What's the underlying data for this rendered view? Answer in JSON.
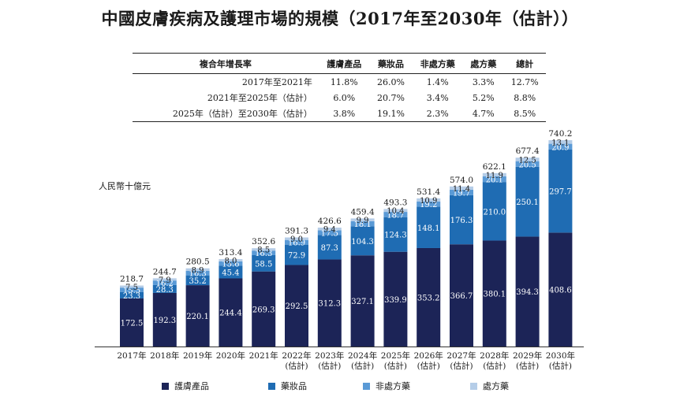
{
  "title": "中國皮膚疾病及護理市場的規模（2017年至2030年（估計））",
  "unit_label": "人民幣十億元",
  "cagr_table": {
    "headers": [
      "複合年增長率",
      "護膚產品",
      "藥妝品",
      "非處方藥",
      "處方藥",
      "總計"
    ],
    "rows": [
      [
        "2017年至2021年",
        "11.8%",
        "26.0%",
        "1.4%",
        "3.3%",
        "12.7%"
      ],
      [
        "2021年至2025年（估計）",
        "6.0%",
        "20.7%",
        "3.4%",
        "5.2%",
        "8.8%"
      ],
      [
        "2025年（估計）至2030年（估計）",
        "3.8%",
        "19.1%",
        "2.3%",
        "4.7%",
        "8.5%"
      ]
    ]
  },
  "colors": {
    "skincare": "#1c2457",
    "cosmeceutical": "#1f6cb3",
    "otc": "#5a9ad6",
    "rx": "#b5cde8"
  },
  "chart_data": {
    "type": "bar",
    "stacked": true,
    "categories": [
      "2017年",
      "2018年",
      "2019年",
      "2020年",
      "2021年",
      "2022年\n(估計)",
      "2023年\n(估計)",
      "2024年\n(估計)",
      "2025年\n(估計)",
      "2026年\n(估計)",
      "2027年\n(估計)",
      "2028年\n(估計)",
      "2029年\n(估計)",
      "2030年\n(估計)"
    ],
    "series": [
      {
        "name": "護膚產品",
        "values": [
          172.5,
          192.3,
          220.1,
          244.4,
          269.3,
          292.5,
          312.3,
          327.1,
          339.9,
          353.2,
          366.7,
          380.1,
          394.3,
          408.6
        ]
      },
      {
        "name": "藥妝品",
        "values": [
          23.3,
          28.3,
          35.2,
          45.4,
          58.5,
          72.9,
          87.3,
          104.3,
          124.3,
          148.1,
          176.3,
          210.0,
          250.1,
          297.7
        ]
      },
      {
        "name": "非處方藥",
        "values": [
          15.5,
          16.2,
          16.3,
          15.6,
          16.3,
          16.9,
          17.5,
          18.1,
          18.7,
          19.2,
          19.7,
          20.1,
          20.5,
          20.9
        ]
      },
      {
        "name": "處方藥",
        "values": [
          7.5,
          7.9,
          8.9,
          8.0,
          8.5,
          9.0,
          9.4,
          9.9,
          10.4,
          10.9,
          11.4,
          11.9,
          12.5,
          13.1
        ]
      }
    ],
    "totals": [
      218.7,
      244.7,
      280.5,
      313.4,
      352.6,
      391.3,
      426.6,
      459.4,
      493.3,
      531.4,
      574.0,
      622.1,
      677.4,
      740.2
    ],
    "ylim": [
      0,
      800
    ],
    "legend_position": "bottom"
  }
}
